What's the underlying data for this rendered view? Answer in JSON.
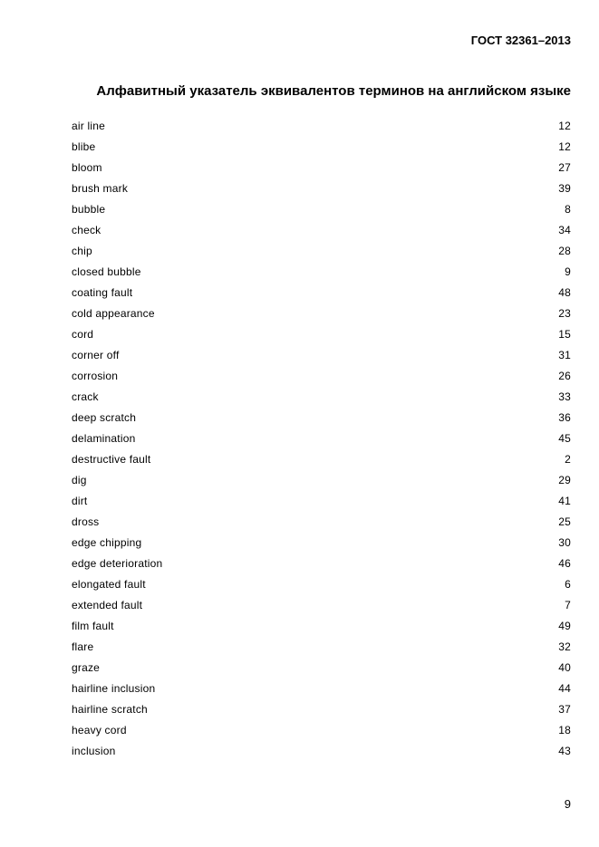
{
  "header": {
    "standard": "ГОСТ 32361–2013"
  },
  "title": "Алфавитный указатель эквивалентов терминов на английском языке",
  "entries": [
    {
      "term": "air line",
      "page": "12"
    },
    {
      "term": "blibe",
      "page": "12"
    },
    {
      "term": "bloom",
      "page": "27"
    },
    {
      "term": "brush mark",
      "page": "39"
    },
    {
      "term": "bubble",
      "page": "8"
    },
    {
      "term": "check",
      "page": "34"
    },
    {
      "term": "chip",
      "page": "28"
    },
    {
      "term": "closed bubble",
      "page": "9"
    },
    {
      "term": "coating fault",
      "page": "48"
    },
    {
      "term": "cold appearance",
      "page": "23"
    },
    {
      "term": "cord",
      "page": "15"
    },
    {
      "term": "corner off",
      "page": "31"
    },
    {
      "term": "corrosion",
      "page": "26"
    },
    {
      "term": "crack",
      "page": "33"
    },
    {
      "term": "deep scratch",
      "page": "36"
    },
    {
      "term": "delamination",
      "page": "45"
    },
    {
      "term": "destructive fault",
      "page": "2"
    },
    {
      "term": "dig",
      "page": "29"
    },
    {
      "term": "dirt",
      "page": "41"
    },
    {
      "term": "dross",
      "page": "25"
    },
    {
      "term": "edge chipping",
      "page": "30"
    },
    {
      "term": "edge deterioration",
      "page": "46"
    },
    {
      "term": "elongated fault",
      "page": "6"
    },
    {
      "term": "extended fault",
      "page": "7"
    },
    {
      "term": "film fault",
      "page": "49"
    },
    {
      "term": "flare",
      "page": "32"
    },
    {
      "term": "graze",
      "page": "40"
    },
    {
      "term": "hairline inclusion",
      "page": "44"
    },
    {
      "term": "hairline scratch",
      "page": "37"
    },
    {
      "term": "heavy cord",
      "page": "18"
    },
    {
      "term": "inclusion",
      "page": "43"
    }
  ],
  "footer": {
    "page_number": "9"
  }
}
